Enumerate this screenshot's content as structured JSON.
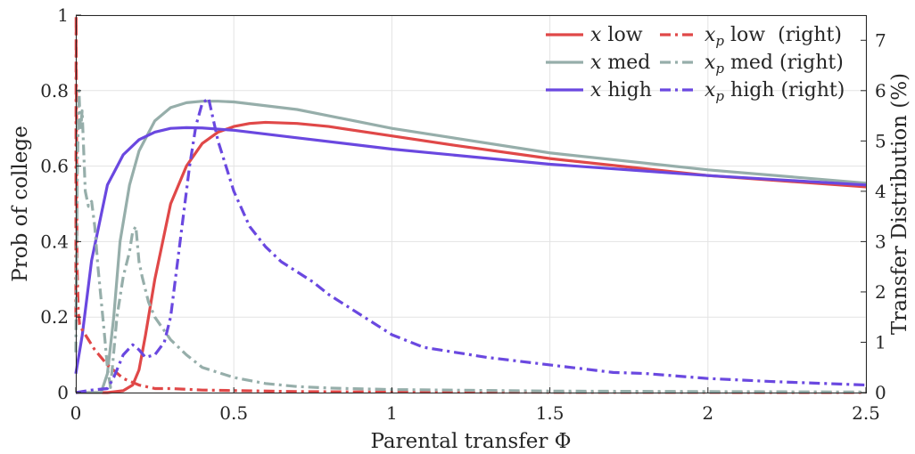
{
  "chart_data": {
    "type": "line",
    "xlabel": "Parental transfer Φ",
    "ylabel_left": "Prob of college",
    "ylabel_right": "Transfer Distribution (%)",
    "xlim": [
      0,
      2.5
    ],
    "ylim_left": [
      0,
      1
    ],
    "ylim_right": [
      0,
      7.5
    ],
    "xticks": [
      "0",
      "0.5",
      "1",
      "1.5",
      "2",
      "2.5"
    ],
    "yticks_left": [
      "0",
      "0.2",
      "0.4",
      "0.6",
      "0.8",
      "1"
    ],
    "yticks_right": [
      "0",
      "1",
      "2",
      "3",
      "4",
      "5",
      "6",
      "7"
    ],
    "grid": true,
    "legend_position": "top-right",
    "legend_columns": 2,
    "series": [
      {
        "name": "x low",
        "label_var": "x",
        "label_sub": "",
        "label_suffix": " low",
        "axis": "left",
        "style": "solid",
        "color": "#e04848",
        "x": [
          0,
          0.1,
          0.15,
          0.18,
          0.2,
          0.22,
          0.25,
          0.28,
          0.3,
          0.35,
          0.4,
          0.45,
          0.5,
          0.55,
          0.6,
          0.7,
          0.8,
          1.0,
          1.2,
          1.5,
          2.0,
          2.5
        ],
        "y": [
          0,
          0,
          0.005,
          0.02,
          0.06,
          0.15,
          0.3,
          0.42,
          0.5,
          0.6,
          0.66,
          0.69,
          0.705,
          0.713,
          0.716,
          0.713,
          0.705,
          0.68,
          0.655,
          0.62,
          0.575,
          0.545
        ]
      },
      {
        "name": "x med",
        "label_var": "x",
        "label_sub": "",
        "label_suffix": " med",
        "axis": "left",
        "style": "solid",
        "color": "#96aeaa",
        "x": [
          0,
          0.08,
          0.1,
          0.12,
          0.13,
          0.14,
          0.15,
          0.17,
          0.2,
          0.25,
          0.3,
          0.35,
          0.4,
          0.45,
          0.5,
          0.7,
          1.0,
          1.5,
          2.0,
          2.5
        ],
        "y": [
          0,
          0,
          0.05,
          0.2,
          0.3,
          0.4,
          0.45,
          0.55,
          0.64,
          0.72,
          0.755,
          0.768,
          0.772,
          0.772,
          0.77,
          0.75,
          0.7,
          0.635,
          0.59,
          0.555
        ]
      },
      {
        "name": "x high",
        "label_var": "x",
        "label_sub": "",
        "label_suffix": " high",
        "axis": "left",
        "style": "solid",
        "color": "#6a48e0",
        "x": [
          0,
          0.02,
          0.05,
          0.08,
          0.1,
          0.15,
          0.2,
          0.25,
          0.3,
          0.35,
          0.4,
          0.5,
          0.7,
          1.0,
          1.5,
          2.0,
          2.5
        ],
        "y": [
          0.05,
          0.15,
          0.35,
          0.47,
          0.55,
          0.63,
          0.67,
          0.69,
          0.7,
          0.702,
          0.701,
          0.695,
          0.675,
          0.645,
          0.605,
          0.575,
          0.55
        ]
      },
      {
        "name": "x_p low (right)",
        "label_var": "x",
        "label_sub": "p",
        "label_suffix": " low  (right)",
        "axis": "right",
        "style": "dashdot",
        "color": "#e04848",
        "x": [
          0,
          0.001,
          0.004,
          0.008,
          0.012,
          0.02,
          0.04,
          0.06,
          0.1,
          0.15,
          0.2,
          0.25,
          0.3,
          0.4,
          0.5,
          0.7,
          1.0,
          1.5,
          2.0,
          2.5
        ],
        "y": [
          1.5,
          7.5,
          2.5,
          1.6,
          1.35,
          1.25,
          1.05,
          0.85,
          0.55,
          0.28,
          0.15,
          0.08,
          0.08,
          0.05,
          0.04,
          0.02,
          0.01,
          0.005,
          0.003,
          0.002
        ]
      },
      {
        "name": "x_p med (right)",
        "label_var": "x",
        "label_sub": "p",
        "label_suffix": " med (right)",
        "axis": "right",
        "style": "dashdot",
        "color": "#96aeaa",
        "x": [
          0,
          0.005,
          0.01,
          0.015,
          0.02,
          0.025,
          0.03,
          0.04,
          0.05,
          0.06,
          0.07,
          0.09,
          0.1,
          0.11,
          0.12,
          0.13,
          0.15,
          0.17,
          0.18,
          0.19,
          0.2,
          0.21,
          0.23,
          0.25,
          0.3,
          0.35,
          0.4,
          0.45,
          0.5,
          0.6,
          0.7,
          0.8,
          1.0,
          1.5,
          2.0,
          2.5
        ],
        "y": [
          0.8,
          4.5,
          6.0,
          5.2,
          5.6,
          4.8,
          4.0,
          3.7,
          3.8,
          3.3,
          2.5,
          1.2,
          0.5,
          0.1,
          0.8,
          1.5,
          2.3,
          2.8,
          3.2,
          3.3,
          2.6,
          2.3,
          1.8,
          1.5,
          1.05,
          0.75,
          0.5,
          0.4,
          0.3,
          0.18,
          0.12,
          0.09,
          0.06,
          0.03,
          0.02,
          0.01
        ]
      },
      {
        "name": "x_p high (right)",
        "label_var": "x",
        "label_sub": "p",
        "label_suffix": " high (right)",
        "axis": "right",
        "style": "dashdot",
        "color": "#6a48e0",
        "x": [
          0,
          0.05,
          0.1,
          0.12,
          0.15,
          0.18,
          0.2,
          0.22,
          0.25,
          0.28,
          0.3,
          0.33,
          0.36,
          0.38,
          0.4,
          0.42,
          0.45,
          0.48,
          0.5,
          0.55,
          0.6,
          0.65,
          0.7,
          0.75,
          0.8,
          0.85,
          0.9,
          1.0,
          1.1,
          1.2,
          1.3,
          1.5,
          1.7,
          1.8,
          2.0,
          2.2,
          2.5
        ],
        "y": [
          0,
          0.05,
          0.08,
          0.3,
          0.75,
          0.95,
          0.85,
          0.7,
          0.75,
          1.0,
          1.5,
          3.0,
          4.5,
          5.3,
          5.75,
          5.85,
          5.0,
          4.4,
          4.0,
          3.3,
          2.9,
          2.6,
          2.4,
          2.2,
          1.95,
          1.75,
          1.55,
          1.15,
          0.9,
          0.8,
          0.7,
          0.55,
          0.4,
          0.38,
          0.28,
          0.22,
          0.15
        ]
      }
    ]
  }
}
